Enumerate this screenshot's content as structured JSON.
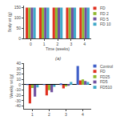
{
  "chart_data": [
    {
      "type": "bar",
      "categories": [
        "0",
        "1",
        "2",
        "3",
        "4"
      ],
      "xlabel": "Time (weeks)",
      "ylabel": "Body wt (g)",
      "series": [
        {
          "name": "FD",
          "color": "#e03020",
          "values": [
            150,
            150,
            150,
            150,
            150
          ]
        },
        {
          "name": "FD 2",
          "color": "#90b830",
          "values": [
            150,
            150,
            150,
            150,
            150
          ]
        },
        {
          "name": "FD 5",
          "color": "#7050a0",
          "values": [
            150,
            150,
            150,
            150,
            150
          ]
        },
        {
          "name": "FD 10",
          "color": "#40a8c8",
          "values": [
            150,
            150,
            150,
            150,
            150
          ]
        }
      ],
      "ylim": [
        0,
        160
      ],
      "yticks": [
        0,
        50,
        100,
        150
      ],
      "grid": false,
      "legend": "right"
    },
    {
      "type": "bar",
      "title": "(a)",
      "categories": [
        "1",
        "2",
        "3",
        "4"
      ],
      "ylabel": "Weekly wt (g)",
      "series": [
        {
          "name": "Control",
          "color": "#4060c8",
          "values": [
            1,
            1,
            2,
            35
          ]
        },
        {
          "name": "FD",
          "color": "#e03020",
          "values": [
            -35,
            -20,
            -7,
            8
          ]
        },
        {
          "name": "FD25",
          "color": "#90b830",
          "values": [
            -6,
            -10,
            -3,
            10
          ]
        },
        {
          "name": "FD5",
          "color": "#7050a0",
          "values": [
            -22,
            -14,
            -2,
            7
          ]
        },
        {
          "name": "FD510",
          "color": "#40a8c8",
          "values": [
            -5,
            -4,
            5,
            5
          ]
        }
      ],
      "ylim": [
        -45,
        40
      ],
      "yticks": [
        -40,
        -30,
        -20,
        -10,
        0,
        10,
        20,
        30,
        40
      ],
      "grid": false,
      "legend": "right"
    }
  ]
}
